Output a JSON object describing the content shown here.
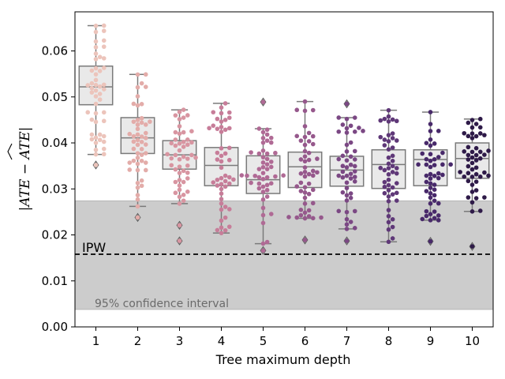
{
  "chart_data": {
    "type": "box+swarm",
    "xlabel": "Tree maximum depth",
    "ylabel": "|ATE − ÂTE|",
    "ylim": [
      0.0,
      0.0685
    ],
    "yticks": [
      "0.00",
      "0.01",
      "0.02",
      "0.03",
      "0.04",
      "0.05",
      "0.06"
    ],
    "categories": [
      "1",
      "2",
      "3",
      "4",
      "5",
      "6",
      "7",
      "8",
      "9",
      "10"
    ],
    "reference_line": {
      "label": "IPW",
      "value": 0.0158,
      "style": "dashed"
    },
    "confidence_band": {
      "label": "95% confidence interval",
      "low": 0.0038,
      "high": 0.0274,
      "color": "#cccccc"
    },
    "boxes": [
      {
        "category": "1",
        "q1": 0.0483,
        "median": 0.0522,
        "q3": 0.0567,
        "whisker_low": 0.0375,
        "whisker_high": 0.0655,
        "outliers": [
          0.0352
        ]
      },
      {
        "category": "2",
        "q1": 0.0377,
        "median": 0.0411,
        "q3": 0.0455,
        "whisker_low": 0.0262,
        "whisker_high": 0.0549,
        "outliers": [
          0.0238
        ]
      },
      {
        "category": "3",
        "q1": 0.0343,
        "median": 0.0374,
        "q3": 0.0405,
        "whisker_low": 0.0268,
        "whisker_high": 0.0472,
        "outliers": [
          0.0221,
          0.0187
        ]
      },
      {
        "category": "4",
        "q1": 0.0307,
        "median": 0.0351,
        "q3": 0.039,
        "whisker_low": 0.0204,
        "whisker_high": 0.0486,
        "outliers": []
      },
      {
        "category": "5",
        "q1": 0.029,
        "median": 0.032,
        "q3": 0.0372,
        "whisker_low": 0.0181,
        "whisker_high": 0.0431,
        "outliers": [
          0.0489,
          0.0166
        ]
      },
      {
        "category": "6",
        "q1": 0.0303,
        "median": 0.0348,
        "q3": 0.038,
        "whisker_low": 0.0236,
        "whisker_high": 0.049,
        "outliers": [
          0.0189
        ]
      },
      {
        "category": "7",
        "q1": 0.0306,
        "median": 0.0341,
        "q3": 0.0371,
        "whisker_low": 0.0213,
        "whisker_high": 0.0455,
        "outliers": [
          0.0485,
          0.0187
        ]
      },
      {
        "category": "8",
        "q1": 0.0301,
        "median": 0.0353,
        "q3": 0.0385,
        "whisker_low": 0.0185,
        "whisker_high": 0.0471,
        "outliers": []
      },
      {
        "category": "9",
        "q1": 0.0307,
        "median": 0.0364,
        "q3": 0.0385,
        "whisker_low": 0.0232,
        "whisker_high": 0.0467,
        "outliers": [
          0.0186
        ]
      },
      {
        "category": "10",
        "q1": 0.0323,
        "median": 0.0366,
        "q3": 0.04,
        "whisker_low": 0.0251,
        "whisker_high": 0.0452,
        "outliers": [
          0.0175
        ]
      }
    ],
    "point_colors": [
      "#ecc4bb",
      "#e3aca9",
      "#d895a1",
      "#c77d99",
      "#b06a95",
      "#96588c",
      "#7b4884",
      "#5f3878",
      "#48296a",
      "#2e1a48"
    ],
    "points_per_group": 50,
    "grid": false
  }
}
